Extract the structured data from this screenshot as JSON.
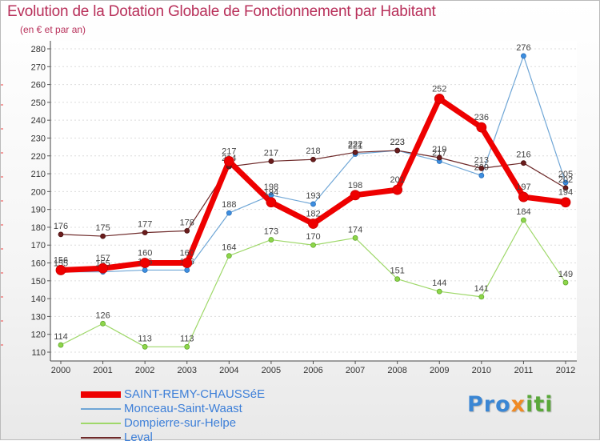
{
  "title": "Evolution de la Dotation Globale de Fonctionnement par Habitant",
  "subtitle": "(en € et par an)",
  "logo": {
    "part1": "Pro",
    "part2": "x",
    "part3": "iti"
  },
  "chart_data": {
    "type": "line",
    "title": "Evolution de la Dotation Globale de Fonctionnement par Habitant",
    "ylabel": "(en € et par an)",
    "xlabel": "",
    "ylim": [
      110,
      280
    ],
    "y_ticks": [
      110,
      120,
      130,
      140,
      150,
      160,
      170,
      180,
      190,
      200,
      210,
      220,
      230,
      240,
      250,
      260,
      270,
      280
    ],
    "categories": [
      "2000",
      "2001",
      "2002",
      "2003",
      "2004",
      "2005",
      "2006",
      "2007",
      "2008",
      "2009",
      "2010",
      "2011",
      "2012"
    ],
    "series": [
      {
        "name": "SAINT-REMY-CHAUSSéE",
        "color": "#ee0000",
        "values": [
          156,
          157,
          160,
          160,
          217,
          194,
          182,
          198,
          201,
          252,
          236,
          197,
          194
        ]
      },
      {
        "name": "Monceau-Saint-Waast",
        "color": "#6fa6d6",
        "values": [
          155,
          155,
          156,
          156,
          188,
          198,
          193,
          221,
          223,
          217,
          209,
          276,
          205
        ]
      },
      {
        "name": "Dompierre-sur-Helpe",
        "color": "#9fd86a",
        "values": [
          114,
          126,
          113,
          113,
          164,
          173,
          170,
          174,
          151,
          144,
          141,
          184,
          149
        ]
      },
      {
        "name": "Leval",
        "color": "#6e2a2a",
        "values": [
          176,
          175,
          177,
          178,
          214,
          217,
          218,
          222,
          223,
          219,
          213,
          216,
          202
        ]
      }
    ]
  }
}
